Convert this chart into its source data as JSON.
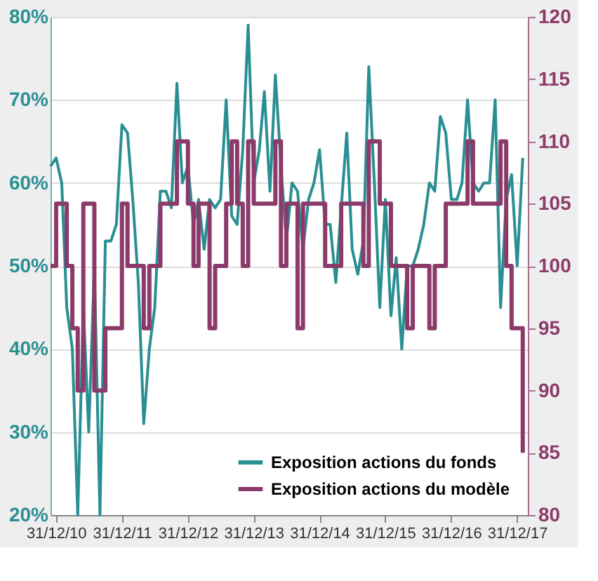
{
  "chart_data": {
    "type": "line",
    "xlim": [
      "2010-12-01",
      "2018-03-01"
    ],
    "xticks": [
      {
        "value": "2010-12-31",
        "label": "31/12/10"
      },
      {
        "value": "2011-12-31",
        "label": "31/12/11"
      },
      {
        "value": "2012-12-31",
        "label": "31/12/12"
      },
      {
        "value": "2013-12-31",
        "label": "31/12/13"
      },
      {
        "value": "2014-12-31",
        "label": "31/12/14"
      },
      {
        "value": "2015-12-31",
        "label": "31/12/15"
      },
      {
        "value": "2016-12-31",
        "label": "31/12/16"
      },
      {
        "value": "2017-12-31",
        "label": "31/12/17"
      }
    ],
    "ylim": [
      20,
      80
    ],
    "yticks": [
      {
        "value": 20,
        "label": "20%"
      },
      {
        "value": 30,
        "label": "30%"
      },
      {
        "value": 40,
        "label": "40%"
      },
      {
        "value": 50,
        "label": "50%"
      },
      {
        "value": 60,
        "label": "60%"
      },
      {
        "value": 70,
        "label": "70%"
      },
      {
        "value": 80,
        "label": "80%"
      }
    ],
    "y2lim": [
      80,
      120
    ],
    "y2ticks": [
      80,
      85,
      90,
      95,
      100,
      105,
      110,
      115,
      120
    ],
    "grid": "y",
    "legend": "bottom right",
    "series": [
      {
        "name": "Exposition actions du fonds",
        "color": "#2a8f93",
        "x": [
          "2010-12",
          "2011-01",
          "2011-02",
          "2011-03",
          "2011-04",
          "2011-05",
          "2011-06",
          "2011-07",
          "2011-08",
          "2011-09",
          "2011-10",
          "2011-11",
          "2011-12",
          "2012-01",
          "2012-02",
          "2012-03",
          "2012-04",
          "2012-05",
          "2012-06",
          "2012-07",
          "2012-08",
          "2012-09",
          "2012-10",
          "2012-11",
          "2012-12",
          "2013-01",
          "2013-02",
          "2013-03",
          "2013-04",
          "2013-05",
          "2013-06",
          "2013-07",
          "2013-08",
          "2013-09",
          "2013-10",
          "2013-11",
          "2013-12",
          "2014-01",
          "2014-02",
          "2014-03",
          "2014-04",
          "2014-05",
          "2014-06",
          "2014-07",
          "2014-08",
          "2014-09",
          "2014-10",
          "2014-11",
          "2014-12",
          "2015-01",
          "2015-02",
          "2015-03",
          "2015-04",
          "2015-05",
          "2015-06",
          "2015-07",
          "2015-08",
          "2015-09",
          "2015-10",
          "2015-11",
          "2015-12",
          "2016-01",
          "2016-02",
          "2016-03",
          "2016-04",
          "2016-05",
          "2016-06",
          "2016-07",
          "2016-08",
          "2016-09",
          "2016-10",
          "2016-11",
          "2016-12",
          "2017-01",
          "2017-02",
          "2017-03",
          "2017-04",
          "2017-05",
          "2017-06",
          "2017-07",
          "2017-08",
          "2017-09",
          "2017-10",
          "2017-11",
          "2017-12",
          "2018-01",
          "2018-02"
        ],
        "values": [
          62,
          63,
          60,
          45,
          40,
          20,
          45,
          30,
          50,
          20,
          53,
          53,
          55,
          67,
          66,
          58,
          48,
          31,
          40,
          45,
          59,
          59,
          57,
          72,
          60,
          62,
          55,
          58,
          52,
          58,
          57,
          58,
          70,
          56,
          55,
          64,
          79,
          60,
          64,
          71,
          59,
          73,
          62,
          53,
          60,
          59,
          52,
          58,
          60,
          64,
          55,
          55,
          48,
          57,
          66,
          52,
          49,
          53,
          74,
          60,
          45,
          58,
          44,
          51,
          40,
          50,
          50,
          52,
          55,
          60,
          59,
          68,
          66,
          58,
          58,
          60,
          70,
          60,
          59,
          60,
          60,
          70,
          45,
          58,
          61,
          50,
          63
        ]
      },
      {
        "name": "Exposition actions du modèle",
        "color": "#8b3a6a",
        "type": "step",
        "axis": "y2",
        "x": [
          "2010-12",
          "2011-01",
          "2011-03",
          "2011-04",
          "2011-05",
          "2011-06",
          "2011-08",
          "2011-10",
          "2012-01",
          "2012-02",
          "2012-05",
          "2012-06",
          "2012-08",
          "2012-11",
          "2013-01",
          "2013-02",
          "2013-03",
          "2013-05",
          "2013-06",
          "2013-08",
          "2013-09",
          "2013-10",
          "2013-11",
          "2013-12",
          "2014-01",
          "2014-05",
          "2014-06",
          "2014-07",
          "2014-09",
          "2014-10",
          "2015-02",
          "2015-05",
          "2015-09",
          "2015-10",
          "2015-12",
          "2016-02",
          "2016-05",
          "2016-06",
          "2016-09",
          "2016-10",
          "2016-12",
          "2017-04",
          "2017-05",
          "2017-10",
          "2017-11",
          "2017-12",
          "2018-02"
        ],
        "values": [
          100,
          105,
          100,
          95,
          90,
          105,
          90,
          95,
          105,
          100,
          95,
          100,
          105,
          110,
          105,
          100,
          105,
          95,
          100,
          105,
          110,
          105,
          100,
          110,
          105,
          110,
          100,
          105,
          95,
          105,
          100,
          105,
          100,
          110,
          105,
          100,
          95,
          100,
          95,
          100,
          105,
          110,
          105,
          110,
          100,
          95,
          85
        ]
      }
    ]
  }
}
